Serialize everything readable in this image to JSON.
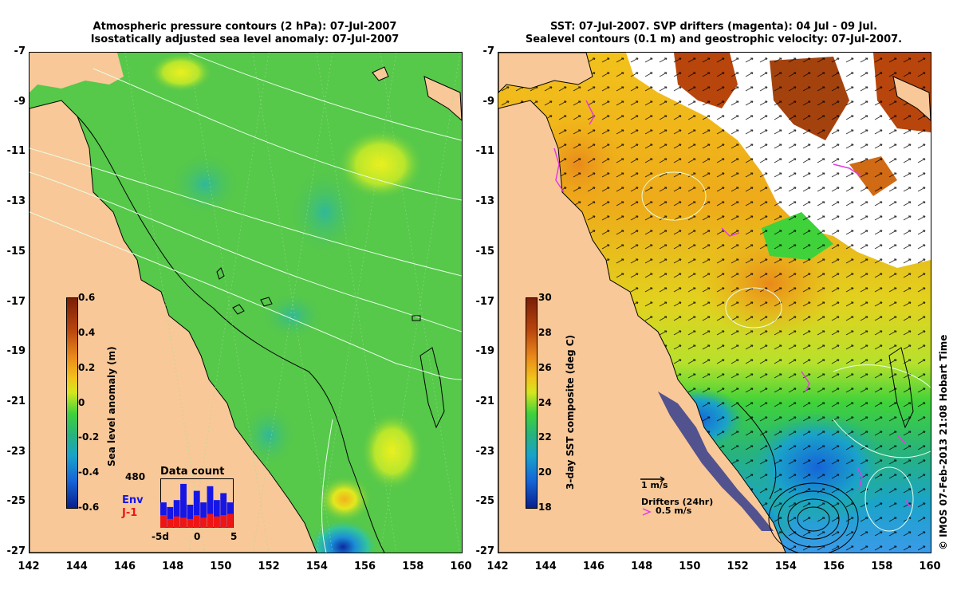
{
  "left": {
    "title_line1": "Atmospheric pressure contours (2 hPa): 07-Jul-2007",
    "title_line2": "Isostatically adjusted sea level anomaly: 07-Jul-2007",
    "colorbar": {
      "label": "Sea level anomaly (m)",
      "ticks": [
        "0.6",
        "0.4",
        "0.2",
        "0",
        "-0.2",
        "-0.4",
        "-0.6"
      ],
      "colors": [
        "#7a1f08",
        "#b8450c",
        "#e9891a",
        "#f2c21b",
        "#d6e61e",
        "#3fd23a",
        "#28b37c",
        "#1aa3c9",
        "#1565d8",
        "#0b1f8c"
      ]
    },
    "data_count": {
      "title": "Data count",
      "max_label": "480",
      "env_label": "Env",
      "j1_label": "J-1",
      "x_left": "-5d",
      "x_mid": "0",
      "x_right": "5",
      "env_values": [
        0.55,
        0.45,
        0.6,
        0.95,
        0.5,
        0.8,
        0.55,
        0.9,
        0.6,
        0.75,
        0.55
      ],
      "j1_values": [
        0.5,
        0.35,
        0.45,
        0.4,
        0.35,
        0.5,
        0.4,
        0.55,
        0.45,
        0.5,
        0.55
      ]
    },
    "colors": {
      "land": "#f8c898",
      "sea": "#56c84a",
      "env": "#1515e6",
      "j1": "#ee1515"
    }
  },
  "right": {
    "title_line1": "SST: 07-Jul-2007. SVP drifters (magenta): 04 Jul - 09 Jul.",
    "title_line2": "Sealevel contours (0.1 m) and geostrophic velocity: 07-Jul-2007.",
    "colorbar": {
      "label": "3-day SST composite (deg C)",
      "ticks": [
        "30",
        "28",
        "26",
        "24",
        "22",
        "20",
        "18"
      ],
      "colors": [
        "#7a1f08",
        "#b8450c",
        "#e9891a",
        "#f2c21b",
        "#d6e61e",
        "#3fd23a",
        "#28b37c",
        "#1aa3c9",
        "#1565d8",
        "#0b1f8c"
      ]
    },
    "velocity_scale_label": "1 m/s",
    "drifters_label": "Drifters (24hr)",
    "drifters_scale_label": "0.5 m/s",
    "colors": {
      "land": "#f8c898",
      "drifter": "#e23ce2",
      "cloud": "#ffffff"
    }
  },
  "axes": {
    "y_ticks": [
      "-7",
      "-9",
      "-11",
      "-13",
      "-15",
      "-17",
      "-19",
      "-21",
      "-23",
      "-25",
      "-27"
    ],
    "x_ticks": [
      "142",
      "144",
      "146",
      "148",
      "150",
      "152",
      "154",
      "156",
      "158",
      "160"
    ]
  },
  "credit": "© IMOS 07-Feb-2013 21:08 Hobart Time"
}
